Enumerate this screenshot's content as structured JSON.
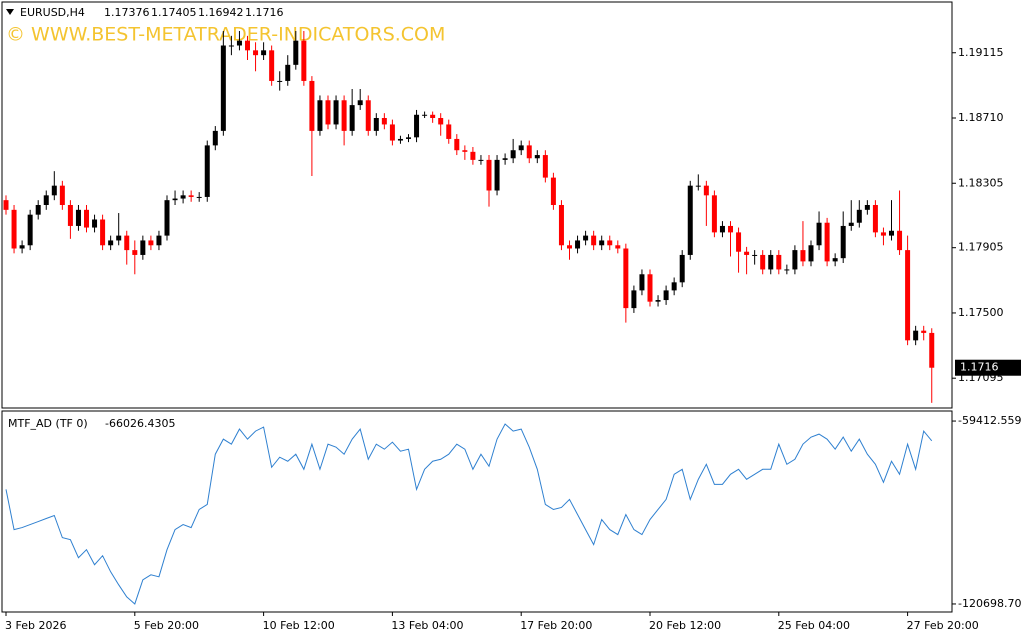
{
  "chart_data": [
    {
      "type": "candlestick",
      "title": "EURUSD,H4",
      "watermark": "© WWW.BEST-METATRADER-INDICATORS.COM",
      "up_color": "#000000",
      "down_color": "#ff0000",
      "open": [
        1.182,
        1.1814,
        1.179,
        1.1792,
        1.1811,
        1.1817,
        1.1823,
        1.1829,
        1.1817,
        1.1804,
        1.1814,
        1.1803,
        1.1808,
        1.1792,
        1.1795,
        1.1798,
        1.1789,
        1.1786,
        1.1795,
        1.1792,
        1.1798,
        1.182,
        1.1821,
        1.1823,
        1.1822,
        1.1822,
        1.1854,
        1.1863,
        1.1916,
        1.1916,
        1.1919,
        1.1913,
        1.191,
        1.1913,
        1.1894,
        1.1894,
        1.1904,
        1.1919,
        1.1894,
        1.1863,
        1.1882,
        1.1867,
        1.1882,
        1.1863,
        1.1879,
        1.1882,
        1.1863,
        1.1871,
        1.1867,
        1.1857,
        1.1858,
        1.1859,
        1.1873,
        1.1873,
        1.1871,
        1.1867,
        1.1858,
        1.1851,
        1.185,
        1.1845,
        1.1845,
        1.1826,
        1.1845,
        1.1846,
        1.1851,
        1.1854,
        1.1846,
        1.1848,
        1.1834,
        1.1817,
        1.1792,
        1.179,
        1.1795,
        1.1798,
        1.1792,
        1.1795,
        1.1792,
        1.179,
        1.1753,
        1.1764,
        1.1774,
        1.1757,
        1.1758,
        1.1764,
        1.1769,
        1.1786,
        1.1829,
        1.1829,
        1.1823,
        1.18,
        1.1804,
        1.18,
        1.1788,
        1.1786,
        1.1786,
        1.1777,
        1.1786,
        1.1777,
        1.1777,
        1.1789,
        1.1782,
        1.1792,
        1.1806,
        1.1782,
        1.1784,
        1.1804,
        1.1806,
        1.1814,
        1.1817,
        1.18,
        1.1798,
        1.1801,
        1.1789,
        1.1733,
        1.1739,
        1.17376
      ],
      "high": [
        1.1823,
        1.1817,
        1.1795,
        1.1814,
        1.182,
        1.1826,
        1.1838,
        1.1832,
        1.182,
        1.1817,
        1.1817,
        1.1811,
        1.1811,
        1.1798,
        1.1812,
        1.1801,
        1.1795,
        1.1798,
        1.1798,
        1.1801,
        1.1823,
        1.1826,
        1.1826,
        1.1826,
        1.1825,
        1.1857,
        1.1866,
        1.1925,
        1.1922,
        1.1925,
        1.1922,
        1.1918,
        1.1918,
        1.1916,
        1.19,
        1.191,
        1.1925,
        1.1925,
        1.1897,
        1.1885,
        1.1885,
        1.1885,
        1.1885,
        1.1889,
        1.1889,
        1.1885,
        1.1874,
        1.1874,
        1.187,
        1.186,
        1.1861,
        1.1876,
        1.1875,
        1.1875,
        1.1874,
        1.187,
        1.1861,
        1.1854,
        1.1853,
        1.1848,
        1.1848,
        1.1848,
        1.1849,
        1.1858,
        1.1857,
        1.1857,
        1.1851,
        1.1851,
        1.1837,
        1.182,
        1.1795,
        1.1798,
        1.1801,
        1.1801,
        1.1798,
        1.1798,
        1.1795,
        1.1793,
        1.1767,
        1.1777,
        1.1777,
        1.1761,
        1.1767,
        1.1772,
        1.1789,
        1.1832,
        1.1836,
        1.1832,
        1.1826,
        1.1807,
        1.1807,
        1.1803,
        1.1791,
        1.1789,
        1.1789,
        1.1789,
        1.1789,
        1.178,
        1.1792,
        1.1807,
        1.1795,
        1.1813,
        1.1809,
        1.1787,
        1.1813,
        1.182,
        1.182,
        1.182,
        1.182,
        1.1803,
        1.182,
        1.1826,
        1.1798,
        1.1742,
        1.1742,
        1.17405
      ],
      "low": [
        1.1811,
        1.1787,
        1.1787,
        1.1789,
        1.1808,
        1.1814,
        1.182,
        1.1814,
        1.1796,
        1.1801,
        1.18,
        1.18,
        1.1789,
        1.1789,
        1.1792,
        1.178,
        1.1774,
        1.1783,
        1.1789,
        1.1789,
        1.1795,
        1.1817,
        1.1818,
        1.1819,
        1.1819,
        1.1819,
        1.1851,
        1.186,
        1.191,
        1.1913,
        1.1907,
        1.19,
        1.1907,
        1.1891,
        1.1888,
        1.1891,
        1.1901,
        1.1891,
        1.1835,
        1.186,
        1.1864,
        1.1864,
        1.1854,
        1.186,
        1.1876,
        1.186,
        1.186,
        1.1864,
        1.1854,
        1.1855,
        1.1856,
        1.1856,
        1.1871,
        1.1868,
        1.186,
        1.1855,
        1.1848,
        1.1845,
        1.1842,
        1.1842,
        1.1816,
        1.1823,
        1.1842,
        1.1843,
        1.1848,
        1.1843,
        1.1843,
        1.1831,
        1.1814,
        1.1789,
        1.1783,
        1.1787,
        1.1792,
        1.1789,
        1.1789,
        1.1789,
        1.1787,
        1.1744,
        1.175,
        1.1761,
        1.1754,
        1.1754,
        1.1755,
        1.1761,
        1.1766,
        1.1783,
        1.1826,
        1.1804,
        1.1797,
        1.1797,
        1.1785,
        1.1775,
        1.1774,
        1.178,
        1.1774,
        1.1774,
        1.1774,
        1.1774,
        1.1774,
        1.1779,
        1.1779,
        1.1789,
        1.1779,
        1.1779,
        1.1781,
        1.1801,
        1.1803,
        1.1811,
        1.1797,
        1.1792,
        1.1795,
        1.1786,
        1.173,
        1.173,
        1.1733,
        1.16942
      ],
      "close": [
        1.1814,
        1.179,
        1.1792,
        1.1811,
        1.1817,
        1.1823,
        1.1829,
        1.1817,
        1.1804,
        1.1814,
        1.1803,
        1.1808,
        1.1792,
        1.1795,
        1.1798,
        1.1789,
        1.1786,
        1.1795,
        1.1792,
        1.1798,
        1.182,
        1.1821,
        1.1823,
        1.1822,
        1.1822,
        1.1854,
        1.1863,
        1.1916,
        1.1916,
        1.1919,
        1.1913,
        1.191,
        1.1913,
        1.1894,
        1.1894,
        1.1904,
        1.1919,
        1.1894,
        1.1863,
        1.1882,
        1.1867,
        1.1882,
        1.1863,
        1.1879,
        1.1882,
        1.1863,
        1.1871,
        1.1867,
        1.1857,
        1.1858,
        1.1859,
        1.1873,
        1.1873,
        1.1871,
        1.1867,
        1.1858,
        1.1851,
        1.185,
        1.1845,
        1.1845,
        1.1826,
        1.1845,
        1.1846,
        1.1851,
        1.1854,
        1.1846,
        1.1848,
        1.1834,
        1.1817,
        1.1792,
        1.179,
        1.1795,
        1.1798,
        1.1792,
        1.1795,
        1.1792,
        1.179,
        1.1753,
        1.1764,
        1.1774,
        1.1757,
        1.1758,
        1.1764,
        1.1769,
        1.1786,
        1.1829,
        1.1829,
        1.1823,
        1.18,
        1.1804,
        1.18,
        1.1788,
        1.1786,
        1.1786,
        1.1777,
        1.1786,
        1.1777,
        1.1777,
        1.1789,
        1.1782,
        1.1792,
        1.1806,
        1.1782,
        1.1784,
        1.1804,
        1.1806,
        1.1814,
        1.1817,
        1.18,
        1.1798,
        1.1801,
        1.1789,
        1.1733,
        1.1739,
        1.17376,
        1.1716
      ],
      "ylim": [
        1.1691,
        1.1943
      ],
      "yticks": [
        1.19115,
        {
          "value": 1.1871,
          "label": "1.18710"
        },
        1.18305,
        1.17905,
        {
          "value": 1.175,
          "label": "1.17500"
        },
        1.17095
      ]
    },
    {
      "type": "line",
      "title": "MTF_AD (TF 0)",
      "last_value": -66026.4305,
      "color": "#2f80d0",
      "categories": [
        "3 Feb 2026",
        null,
        null,
        null,
        null,
        null,
        null,
        null,
        null,
        null,
        null,
        null,
        null,
        null,
        null,
        null,
        "5 Feb 20:00",
        null,
        null,
        null,
        null,
        null,
        null,
        null,
        null,
        null,
        null,
        null,
        null,
        null,
        null,
        null,
        "10 Feb 12:00",
        null,
        null,
        null,
        null,
        null,
        null,
        null,
        null,
        null,
        null,
        null,
        null,
        null,
        null,
        null,
        "13 Feb 04:00",
        null,
        null,
        null,
        null,
        null,
        null,
        null,
        null,
        null,
        null,
        null,
        null,
        null,
        null,
        null,
        "17 Feb 20:00",
        null,
        null,
        null,
        null,
        null,
        null,
        null,
        null,
        null,
        null,
        null,
        null,
        null,
        null,
        null,
        "20 Feb 12:00",
        null,
        null,
        null,
        null,
        null,
        null,
        null,
        null,
        null,
        null,
        null,
        null,
        null,
        null,
        null,
        "25 Feb 04:00",
        null,
        null,
        null,
        null,
        null,
        null,
        null,
        null,
        null,
        null,
        null,
        null,
        null,
        null,
        null,
        "27 Feb 20:00",
        null,
        null,
        null
      ],
      "values": [
        -82309,
        -95777,
        -95103,
        -94093,
        -93083,
        -92073,
        -91063,
        -98470,
        -99144,
        -105204,
        -102511,
        -107561,
        -104531,
        -109918,
        -114292,
        -118333,
        -120698.7,
        -112609,
        -110928,
        -111602,
        -102511,
        -95777,
        -94093,
        -95103,
        -89043,
        -87359,
        -70524,
        -65474,
        -67157,
        -62107,
        -65474,
        -62780,
        -61433,
        -74901,
        -71534,
        -72881,
        -70524,
        -75575,
        -67157,
        -75575,
        -67157,
        -68167,
        -70524,
        -65474,
        -62107,
        -72208,
        -67157,
        -68841,
        -66484,
        -69514,
        -68841,
        -82309,
        -75575,
        -72881,
        -72208,
        -70524,
        -67157,
        -68841,
        -75575,
        -70524,
        -74565,
        -65474,
        -60423,
        -62780,
        -62107,
        -68167,
        -75575,
        -87359,
        -89043,
        -88369,
        -85676,
        -90726,
        -95777,
        -100827,
        -92410,
        -95777,
        -97460,
        -90726,
        -95777,
        -97460,
        -92410,
        -89043,
        -85676,
        -77258,
        -75575,
        -85676,
        -78942,
        -73891,
        -80625,
        -80625,
        -77258,
        -75575,
        -78942,
        -77258,
        -75575,
        -75575,
        -67157,
        -73891,
        -72208,
        -67157,
        -64800,
        -63790,
        -65474,
        -68841,
        -64800,
        -69514,
        -65474,
        -70524,
        -73891,
        -79952,
        -72881,
        -77258,
        -67157,
        -75575,
        -62780,
        -66026.4305
      ],
      "ylim": [
        -123392,
        -56046
      ],
      "yticks": [
        -59412.559,
        {
          "value": -120698.7,
          "label": "-120698.70"
        }
      ]
    }
  ]
}
